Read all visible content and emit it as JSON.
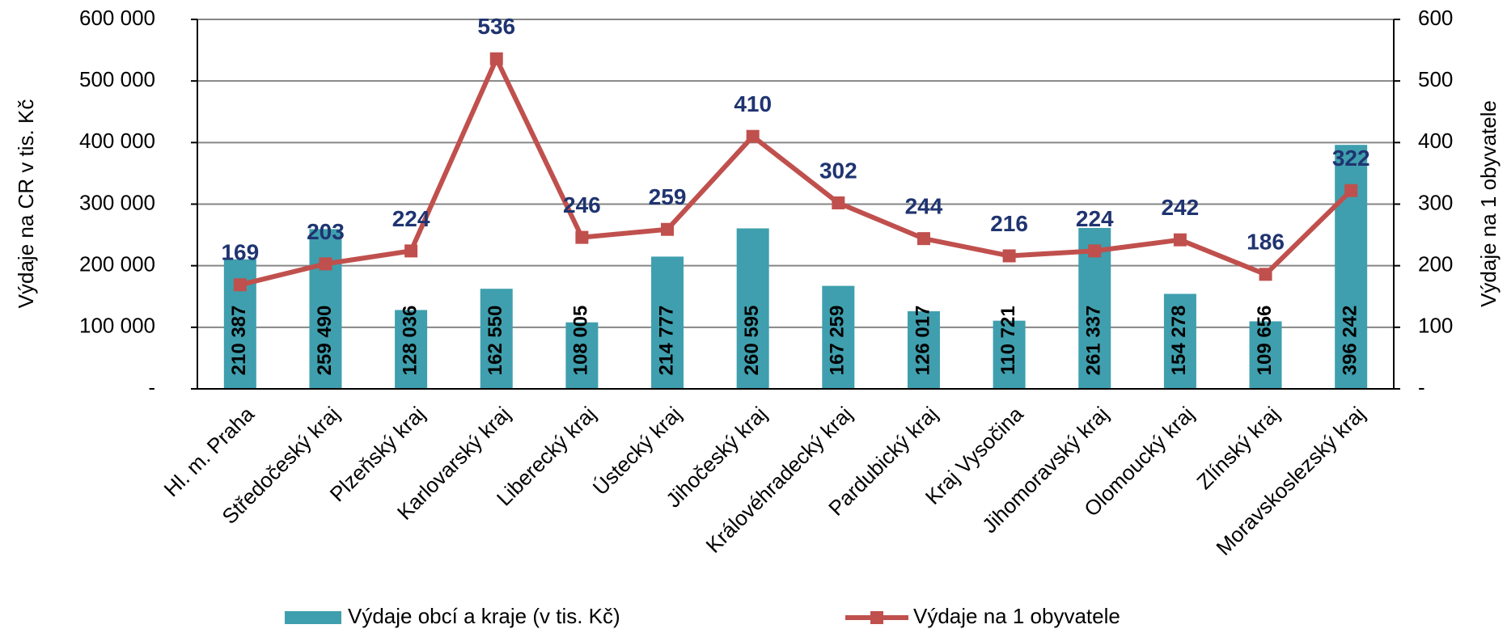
{
  "chart_data": {
    "type": "bar_line",
    "ylabel": "Výdaje na CR v tis. Kč",
    "y2label": "Výdaje na 1 obyvatele",
    "categories": [
      "Hl. m. Praha",
      "Středočeský kraj",
      "Plzeňský kraj",
      "Karlovarský kraj",
      "Liberecký kraj",
      "Ústecký kraj",
      "Jihočeský kraj",
      "Královéhradecký kraj",
      "Pardubický kraj",
      "Kraj Vysočina",
      "Jihomoravský kraj",
      "Olomoucký kraj",
      "Zlínský kraj",
      "Moravskoslezský kraj"
    ],
    "series": [
      {
        "name": "Výdaje obcí a kraje (v tis. Kč)",
        "type": "bar",
        "color": "#3f9fae",
        "axis": "y",
        "values": [
          210387,
          259490,
          128036,
          162550,
          108005,
          214777,
          260595,
          167259,
          126017,
          110721,
          261337,
          154278,
          109656,
          396242
        ],
        "value_labels": [
          "210 387",
          "259 490",
          "128 036",
          "162 550",
          "108 005",
          "214 777",
          "260 595",
          "167 259",
          "126 017",
          "110 721",
          "261 337",
          "154 278",
          "109 656",
          "396 242"
        ]
      },
      {
        "name": "Výdaje na 1 obyvatele",
        "type": "line",
        "color": "#c0504d",
        "axis": "y2",
        "values": [
          169,
          203,
          224,
          536,
          246,
          259,
          410,
          302,
          244,
          216,
          224,
          242,
          186,
          322
        ]
      }
    ],
    "ylim": [
      0,
      600000
    ],
    "yticks": [
      {
        "value": 0,
        "label": "-"
      },
      {
        "value": 100000,
        "label": "100 000"
      },
      {
        "value": 200000,
        "label": "200 000"
      },
      {
        "value": 300000,
        "label": "300 000"
      },
      {
        "value": 400000,
        "label": "400 000"
      },
      {
        "value": 500000,
        "label": "500 000"
      },
      {
        "value": 600000,
        "label": "600 000"
      }
    ],
    "y2lim": [
      0,
      600
    ],
    "y2ticks": [
      {
        "value": 0,
        "label": "-"
      },
      100,
      200,
      300,
      400,
      500,
      600
    ],
    "grid": true
  }
}
